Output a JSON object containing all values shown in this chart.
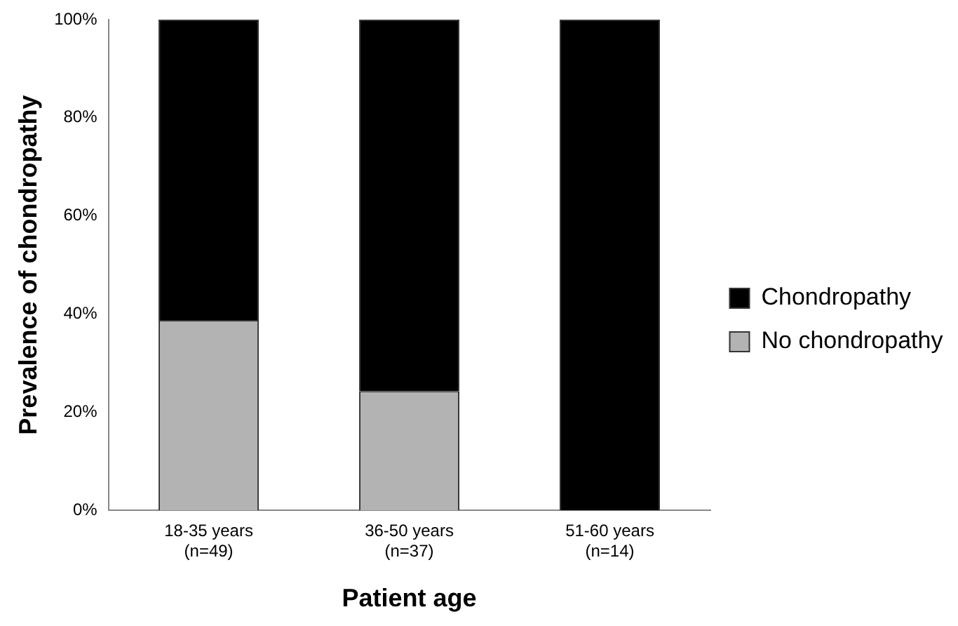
{
  "chart_data": {
    "type": "bar",
    "stacked": true,
    "xlabel": "Patient age",
    "ylabel": "Prevalence of chondropathy",
    "categories": [
      "18-35 years\n(n=49)",
      "36-50 years\n(n=37)",
      "51-60 years\n(n=14)"
    ],
    "series": [
      {
        "name": "No chondropathy",
        "color": "#b3b3b3",
        "values": [
          38.8,
          24.3,
          0
        ]
      },
      {
        "name": "Chondropathy",
        "color": "#000000",
        "values": [
          61.2,
          75.7,
          100
        ]
      }
    ],
    "ylim": [
      0,
      100
    ],
    "yticks": [
      {
        "value": 0,
        "label": "0%"
      },
      {
        "value": 20,
        "label": "20%"
      },
      {
        "value": 40,
        "label": "40%"
      },
      {
        "value": 60,
        "label": "60%"
      },
      {
        "value": 80,
        "label": "80%"
      },
      {
        "value": 100,
        "label": "100%"
      }
    ],
    "grid": false,
    "legend": "right"
  }
}
